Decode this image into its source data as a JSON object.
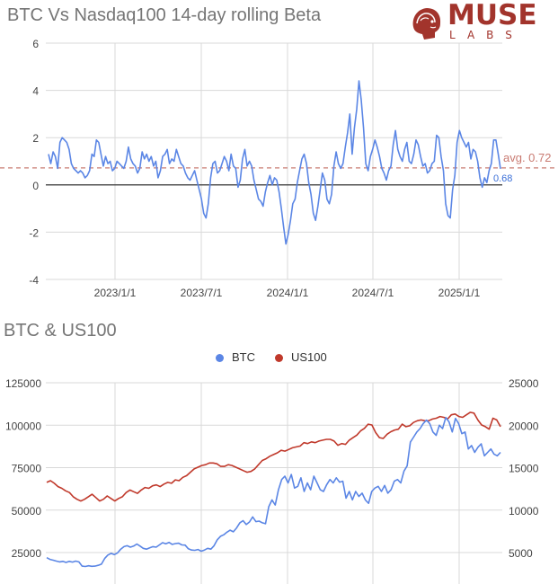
{
  "chart1_title": "BTC Vs Nasdaq100 14-day rolling Beta",
  "chart2_title": "BTC & US100",
  "logo": {
    "word": "MUSE",
    "sub": "LABS",
    "icon": "muse-head-logo"
  },
  "colors": {
    "btc": "#5b86e5",
    "us100": "#c0392b",
    "avg": "#c97b72",
    "last": "#3b6fd8",
    "grid": "#d9d9d9",
    "zero": "#222222"
  },
  "chart_data": [
    {
      "type": "line",
      "title": "BTC Vs Nasdaq100 14-day rolling Beta",
      "x_tick_labels": [
        "2023/1/1",
        "2023/7/1",
        "2024/1/1",
        "2024/7/1",
        "2025/1/1"
      ],
      "y_tick_labels": [
        "6",
        "4",
        "2",
        "0",
        "-2",
        "-4"
      ],
      "ylim": [
        -4,
        6
      ],
      "grid": true,
      "avg_label": "avg. 0.72",
      "avg_value": 0.72,
      "last_label": "0.68",
      "series": [
        {
          "values": [
            1.3,
            0.9,
            1.4,
            1.2,
            0.7,
            1.8,
            2.0,
            1.9,
            1.8,
            1.5,
            0.9,
            0.7,
            0.6,
            0.5,
            0.6,
            0.5,
            0.3,
            0.4,
            0.6,
            1.3,
            1.2,
            1.9,
            1.8,
            1.3,
            0.8,
            1.2,
            0.9,
            1.0,
            0.6,
            0.7,
            1.0,
            0.9,
            0.8,
            0.7,
            1.0,
            1.6,
            1.1,
            0.9,
            0.8,
            0.5,
            0.7,
            1.4,
            1.1,
            1.3,
            1.0,
            1.2,
            0.8,
            1.0,
            0.3,
            0.6,
            1.2,
            1.3,
            1.5,
            0.9,
            1.1,
            1.0,
            1.5,
            1.2,
            0.9,
            0.8,
            0.5,
            0.3,
            0.2,
            0.4,
            0.6,
            0.2,
            -0.2,
            -0.6,
            -1.2,
            -1.4,
            -0.8,
            0.3,
            0.9,
            1.0,
            0.5,
            0.6,
            0.9,
            1.2,
            1.0,
            0.6,
            1.3,
            0.8,
            0.7,
            -0.1,
            0.2,
            1.1,
            1.5,
            0.8,
            1.0,
            0.8,
            0.2,
            -0.2,
            -0.6,
            -0.7,
            -0.9,
            -0.3,
            0.1,
            0.4,
            0.0,
            0.3,
            0.2,
            -0.3,
            -1.0,
            -1.8,
            -2.5,
            -2.1,
            -1.5,
            -0.8,
            -0.6,
            0.1,
            0.6,
            1.1,
            1.3,
            0.9,
            0.1,
            -0.4,
            -1.2,
            -1.5,
            -0.9,
            -0.2,
            0.5,
            0.2,
            -0.6,
            -0.8,
            -0.4,
            0.8,
            1.4,
            0.9,
            0.7,
            0.9,
            1.6,
            2.2,
            3.0,
            1.3,
            2.4,
            3.2,
            4.4,
            3.6,
            2.4,
            0.9,
            0.6,
            1.2,
            1.5,
            1.9,
            1.6,
            1.2,
            0.7,
            0.5,
            0.2,
            0.6,
            0.8,
            1.7,
            2.3,
            1.5,
            1.2,
            1.0,
            1.5,
            1.8,
            1.0,
            0.9,
            1.3,
            1.9,
            1.7,
            1.2,
            0.8,
            0.9,
            0.5,
            0.6,
            0.9,
            1.0,
            2.1,
            2.0,
            1.2,
            0.6,
            -0.8,
            -1.3,
            -1.4,
            -0.2,
            0.4,
            1.8,
            2.3,
            2.0,
            1.8,
            1.6,
            1.8,
            1.1,
            1.5,
            1.4,
            1.0,
            0.3,
            -0.1,
            0.3,
            0.1,
            0.6,
            0.9,
            1.9,
            1.9,
            1.3,
            0.68
          ]
        }
      ]
    },
    {
      "type": "line",
      "title": "BTC & US100",
      "legend": [
        "BTC",
        "US100"
      ],
      "legend_position": "top",
      "y_left_tick_labels": [
        "125000",
        "100000",
        "75000",
        "50000",
        "25000"
      ],
      "y_right_tick_labels": [
        "25000",
        "20000",
        "15000",
        "10000",
        "5000"
      ],
      "ylim_left": [
        15000,
        125000
      ],
      "ylim_right": [
        3000,
        25000
      ],
      "grid": true,
      "series": [
        {
          "name": "BTC",
          "axis": "left",
          "values": [
            22000,
            21000,
            20500,
            20000,
            19500,
            19800,
            19200,
            19800,
            19400,
            20000,
            19500,
            17000,
            16800,
            17200,
            16900,
            17000,
            17500,
            18200,
            21500,
            23500,
            24500,
            23800,
            24800,
            27000,
            28500,
            29000,
            28200,
            28800,
            30000,
            28800,
            27500,
            27000,
            27800,
            28500,
            28200,
            29500,
            30800,
            30200,
            31000,
            29800,
            30300,
            30500,
            29500,
            29400,
            27200,
            26500,
            26300,
            26800,
            25800,
            26500,
            27500,
            27000,
            29000,
            32500,
            34600,
            35500,
            37000,
            38200,
            37200,
            39500,
            42500,
            43800,
            41500,
            43000,
            46000,
            43200,
            43500,
            42500,
            42000,
            52000,
            56000,
            53000,
            62000,
            68000,
            70000,
            66000,
            71000,
            63000,
            64000,
            69000,
            61000,
            66000,
            62000,
            70000,
            66000,
            62000,
            61000,
            65000,
            68000,
            66000,
            69000,
            66500,
            67000,
            57000,
            61000,
            56000,
            61000,
            58000,
            60000,
            56000,
            54000,
            61000,
            63000,
            64000,
            61000,
            64500,
            60000,
            62000,
            67000,
            68000,
            66000,
            73000,
            76000,
            90000,
            93000,
            96000,
            98000,
            101000,
            103000,
            101000,
            96000,
            94000,
            100000,
            98000,
            104500,
            102000,
            96000,
            104000,
            101000,
            95000,
            96000,
            86000,
            88000,
            84000,
            87000,
            89000,
            82000,
            84000,
            86000,
            83000,
            82000,
            84000
          ]
        },
        {
          "name": "US100",
          "axis": "right",
          "values": [
            13200,
            13400,
            13100,
            12700,
            12500,
            12200,
            12000,
            11500,
            11200,
            11000,
            11200,
            11500,
            11800,
            11400,
            11000,
            11200,
            11600,
            11300,
            11000,
            11300,
            11500,
            12000,
            12300,
            12100,
            11900,
            12300,
            12600,
            12500,
            12800,
            12900,
            12700,
            13000,
            13200,
            13100,
            13500,
            13400,
            13800,
            14000,
            14400,
            14800,
            15000,
            15200,
            15300,
            15500,
            15500,
            15400,
            15100,
            15100,
            15300,
            15200,
            15000,
            14800,
            14600,
            14400,
            14500,
            14800,
            15300,
            15800,
            16000,
            16300,
            16500,
            16700,
            17000,
            16900,
            17100,
            17300,
            17400,
            17500,
            17900,
            17800,
            18000,
            17900,
            18100,
            18200,
            18300,
            18300,
            18100,
            17600,
            17800,
            17700,
            18200,
            18500,
            18800,
            19300,
            19600,
            20100,
            20000,
            19100,
            18500,
            18400,
            18900,
            19200,
            19400,
            19500,
            20100,
            19800,
            19900,
            20300,
            20500,
            20600,
            20500,
            20500,
            20700,
            20800,
            21000,
            20900,
            20700,
            21200,
            21300,
            21000,
            20900,
            21200,
            21500,
            21400,
            20600,
            20000,
            19800,
            19500,
            20800,
            20600,
            19800
          ]
        }
      ]
    }
  ]
}
